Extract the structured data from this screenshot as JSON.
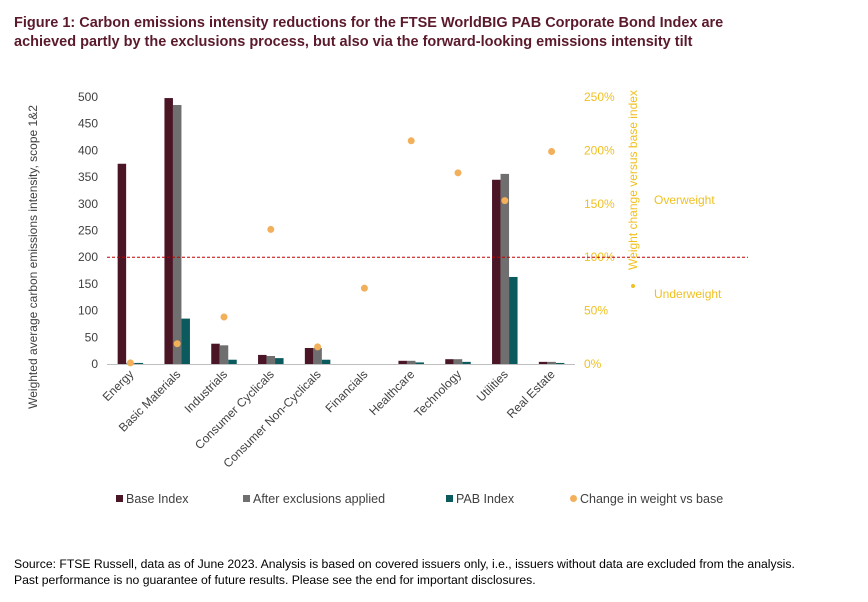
{
  "figure": {
    "title_line1": "Figure 1: Carbon emissions intensity reductions for the FTSE WorldBIG PAB Corporate Bond Index are",
    "title_line2": "achieved partly by the exclusions process, but also via the forward-looking emissions intensity tilt",
    "source_line1": "Source: FTSE Russell, data as of June 2023. Analysis is based on covered issuers only, i.e., issuers without data are excluded from the analysis.",
    "source_line2": "Past performance is no guarantee of future results. Please see the end for important disclosures."
  },
  "colors": {
    "title": "#5b1a2c",
    "base_index": "#4a1525",
    "after_exclusions": "#6f6f6f",
    "pab_index": "#0b5a5e",
    "weight_change": "#f2b05a",
    "right_axis": "#f0c020",
    "reference_line": "#c00000"
  },
  "chart_data": {
    "type": "bar",
    "categories": [
      "Energy",
      "Basic Materials",
      "Industrials",
      "Consumer Cyclicals",
      "Consumer Non-Cyclicals",
      "Financials",
      "Healthcare",
      "Technology",
      "Utilities",
      "Real Estate"
    ],
    "series": [
      {
        "name": "Base Index",
        "values": [
          375,
          498,
          38,
          17,
          30,
          0,
          6,
          9,
          345,
          4
        ]
      },
      {
        "name": "After exclusions applied",
        "values": [
          2,
          485,
          35,
          15,
          30,
          0,
          6,
          9,
          356,
          4
        ]
      },
      {
        "name": "PAB Index",
        "values": [
          2,
          85,
          8,
          11,
          8,
          0,
          3,
          4,
          163,
          2
        ]
      }
    ],
    "secondary_series": {
      "name": "Change in weight vs base",
      "type": "scatter",
      "axis": "right",
      "values": [
        1,
        19,
        44,
        126,
        16,
        71,
        209,
        179,
        153,
        199
      ]
    },
    "ylabel": "Weighted average carbon emissions intensity, scope 1&2",
    "ylabel_right": "Weight change versus base index",
    "ylim": [
      0,
      500
    ],
    "yticks": [
      "0",
      "50",
      "100",
      "150",
      "200",
      "250",
      "300",
      "350",
      "400",
      "450",
      "500"
    ],
    "ylim_right": [
      0,
      250
    ],
    "yticks_right": [
      "0%",
      "50%",
      "100%",
      "150%",
      "200%",
      "250%"
    ],
    "reference_line": {
      "axis": "right",
      "value": 100,
      "style": "dashed"
    },
    "annotations": {
      "above": "Overweight",
      "below": "Underweight"
    },
    "legend": [
      "Base Index",
      "After exclusions applied",
      "PAB Index",
      "Change in weight vs base"
    ],
    "legend_position": "bottom",
    "grid": false
  }
}
